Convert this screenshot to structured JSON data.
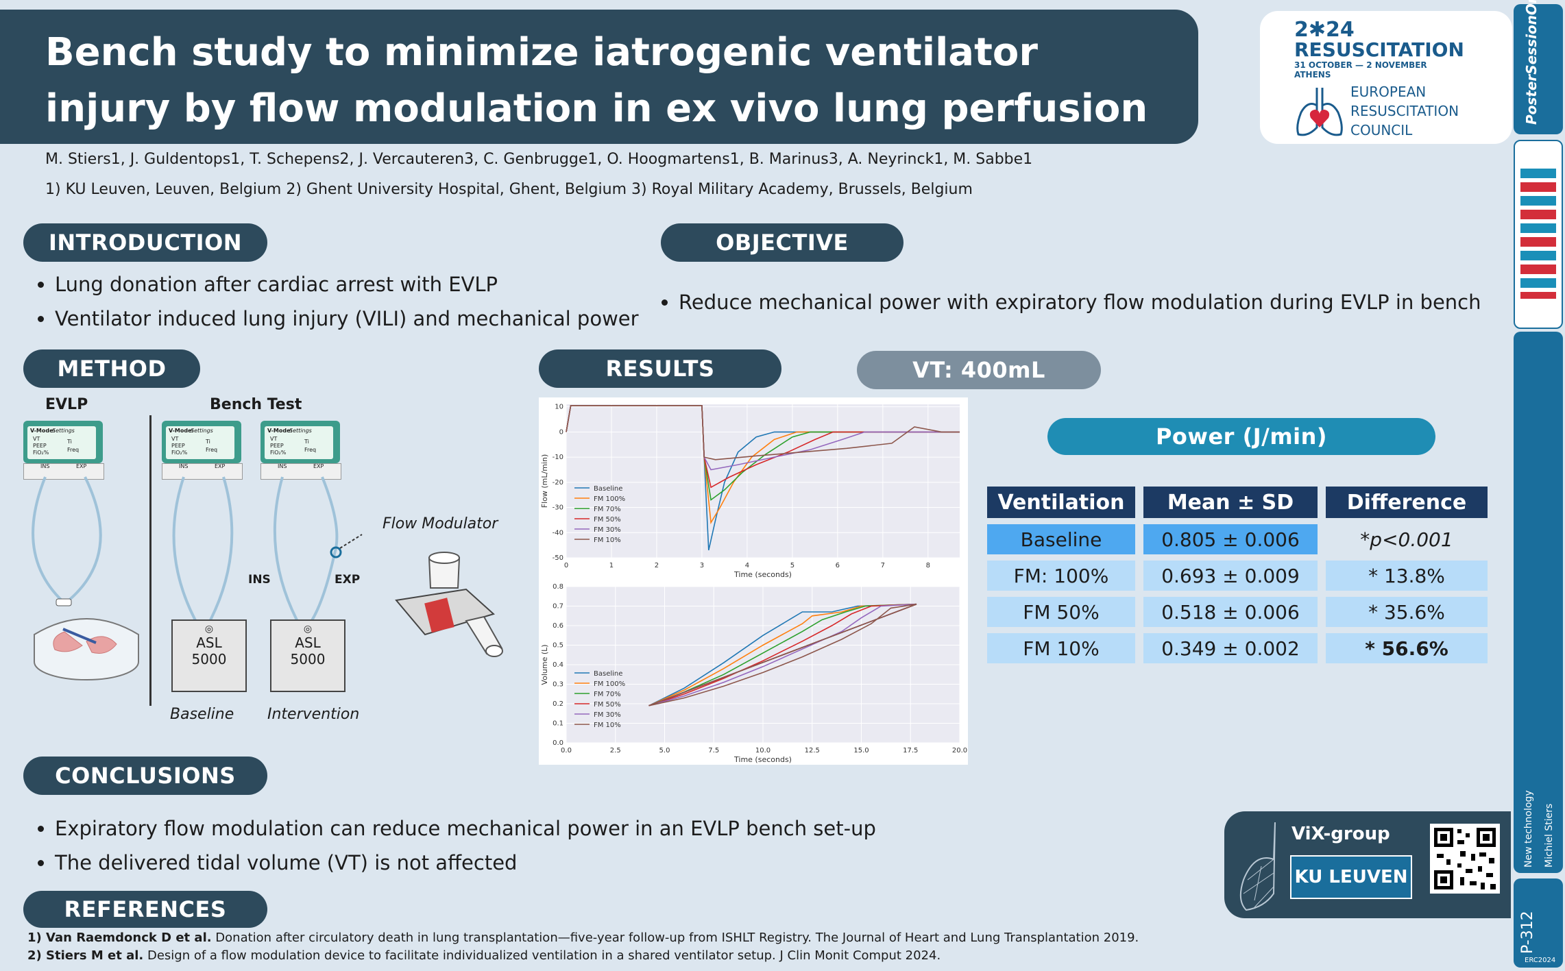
{
  "title": "Bench study to minimize iatrogenic ventilator injury by flow modulation in ex vivo lung perfusion",
  "authors": "M. Stiers1, J. Guldentops1, T. Schepens2, J. Vercauteren3, C. Genbrugge1, O. Hoogmartens1, B. Marinus3, A. Neyrinck1, M. Sabbe1",
  "affiliations": "1) KU Leuven, Leuven, Belgium  2) Ghent University Hospital, Ghent, Belgium  3) Royal Military Academy, Brussels, Belgium",
  "logo": {
    "year": "2✱24",
    "event": "RESUSCITATION",
    "dates": "31 OCTOBER — 2 NOVEMBER",
    "city": "ATHENS",
    "org1": "EUROPEAN",
    "org2": "RESUSCITATION",
    "org3": "COUNCIL"
  },
  "sections": {
    "introduction": "INTRODUCTION",
    "objective": "OBJECTIVE",
    "method": "METHOD",
    "results": "RESULTS",
    "vt": "VT: 400mL",
    "power": "Power (J/min)",
    "conclusions": "CONCLUSIONS",
    "references": "REFERENCES"
  },
  "introduction_items": [
    "Lung donation after cardiac arrest with EVLP",
    "Ventilator induced lung injury (VILI) and mechanical power"
  ],
  "objective_items": [
    "Reduce mechanical power with expiratory flow modulation during EVLP in bench"
  ],
  "method": {
    "evlp_label": "EVLP",
    "bench_label": "Bench Test",
    "baseline_label": "Baseline",
    "intervention_label": "Intervention",
    "flow_modulator_label": "Flow Modulator",
    "ins": "INS",
    "exp": "EXP",
    "asl": "ASL",
    "asl_num": "5000",
    "device": {
      "mode": "V-Mode:",
      "settings": "Settings",
      "vt": "VT",
      "peep": "PEEP",
      "fio2": "FiO₂%",
      "ti": "Ti",
      "freq": "Freq",
      "ins": "INS",
      "exp": "EXP"
    }
  },
  "table": {
    "headers": [
      "Ventilation",
      "Mean ± SD",
      "Difference"
    ],
    "rows": [
      [
        "Baseline",
        "0.805 ± 0.006",
        "*p<0.001"
      ],
      [
        "FM: 100%",
        "0.693 ± 0.009",
        "* 13.8%"
      ],
      [
        "FM 50%",
        "0.518 ± 0.006",
        "* 35.6%"
      ],
      [
        "FM 10%",
        "0.349 ± 0.002",
        "* 56.6%"
      ]
    ]
  },
  "conclusions_items": [
    "Expiratory flow modulation can reduce mechanical power in an EVLP bench set-up",
    "The delivered tidal volume (VT) is not affected"
  ],
  "references_items": [
    {
      "bold": "1) Van Raemdonck D et al.",
      "text": " Donation after circulatory death in lung transplantation—five-year follow-up from ISHLT Registry. The Journal of Heart and Lung Transplantation 2019."
    },
    {
      "bold": "2) Stiers M et al.",
      "text": " Design of a flow modulation device to facilitate individualized ventilation in a shared ventilator setup. J Clin Monit Comput 2024."
    }
  ],
  "vix": {
    "group": "ViX-group",
    "university": "KU LEUVEN"
  },
  "sidebar": {
    "brand": "PosterSessionOnline",
    "topic": "New technology",
    "author": "Michiel Stiers",
    "poster_id": "P-312",
    "conf": "ERC2024"
  },
  "colors": {
    "series": [
      "#1f77b4",
      "#ff7f0e",
      "#2ca02c",
      "#d62728",
      "#9467bd",
      "#8c564b"
    ]
  },
  "chart_data": [
    {
      "type": "line",
      "xlabel": "Time (seconds)",
      "ylabel": "Flow (mL/min)",
      "xlim": [
        0,
        8.7
      ],
      "ylim": [
        -50,
        11
      ],
      "xticks": [
        0,
        1,
        2,
        3,
        4,
        5,
        6,
        7,
        8
      ],
      "yticks": [
        10,
        0,
        -10,
        -20,
        -30,
        -40,
        -50
      ],
      "legend": "lower-left",
      "series": [
        {
          "name": "Baseline",
          "x": [
            0,
            0.1,
            3.0,
            3.05,
            3.15,
            3.3,
            3.5,
            3.8,
            4.2,
            4.6,
            5.0,
            8.7
          ],
          "y": [
            0,
            10.5,
            10.5,
            -10,
            -47,
            -35,
            -20,
            -8,
            -2,
            0,
            0,
            0
          ]
        },
        {
          "name": "FM 100%",
          "x": [
            0,
            0.1,
            3.0,
            3.05,
            3.2,
            3.4,
            3.7,
            4.1,
            4.6,
            5.1,
            5.4,
            8.7
          ],
          "y": [
            0,
            10.5,
            10.5,
            -10,
            -36,
            -30,
            -20,
            -10,
            -3,
            0,
            0,
            0
          ]
        },
        {
          "name": "FM 70%",
          "x": [
            0,
            0.1,
            3.0,
            3.05,
            3.2,
            3.5,
            3.9,
            4.4,
            5.0,
            5.4,
            8.7
          ],
          "y": [
            0,
            10.5,
            10.5,
            -10,
            -27,
            -23,
            -16,
            -9,
            -2,
            0,
            0
          ]
        },
        {
          "name": "FM 50%",
          "x": [
            0,
            0.1,
            3.0,
            3.05,
            3.2,
            3.6,
            4.2,
            4.9,
            5.5,
            5.9,
            8.7
          ],
          "y": [
            0,
            10.5,
            10.5,
            -10,
            -22,
            -18,
            -13,
            -8,
            -3,
            0,
            0
          ]
        },
        {
          "name": "FM 30%",
          "x": [
            0,
            0.1,
            3.0,
            3.05,
            3.2,
            3.8,
            4.6,
            5.4,
            6.1,
            6.6,
            8.7
          ],
          "y": [
            0,
            10.5,
            10.5,
            -10,
            -15,
            -13,
            -10,
            -7,
            -3,
            0,
            0
          ]
        },
        {
          "name": "FM 10%",
          "x": [
            0,
            0.1,
            3.0,
            3.05,
            3.3,
            4.2,
            5.2,
            6.2,
            7.2,
            7.7,
            8.3,
            8.7
          ],
          "y": [
            0,
            10.5,
            10.5,
            -10,
            -11,
            -9.5,
            -8,
            -6.5,
            -4.5,
            2,
            0,
            0
          ]
        }
      ]
    },
    {
      "type": "line",
      "xlabel": "Time (seconds)",
      "ylabel": "Volume (L)",
      "xlim": [
        0,
        20
      ],
      "ylim": [
        0,
        0.8
      ],
      "xticks": [
        0.0,
        2.5,
        5.0,
        7.5,
        10.0,
        12.5,
        15.0,
        17.5,
        20.0
      ],
      "yticks": [
        0.0,
        0.1,
        0.2,
        0.3,
        0.4,
        0.5,
        0.6,
        0.7,
        0.8
      ],
      "legend": "lower-left",
      "series": [
        {
          "name": "Baseline",
          "x": [
            4.2,
            6,
            8,
            10,
            11.5,
            12,
            13.5,
            14.8,
            17.8,
            4.2
          ],
          "y": [
            0.19,
            0.28,
            0.41,
            0.55,
            0.64,
            0.67,
            0.67,
            0.7,
            0.71,
            0.19
          ]
        },
        {
          "name": "FM 100%",
          "x": [
            4.2,
            6,
            8,
            10,
            12,
            12.5,
            14,
            15,
            17.8,
            4.2
          ],
          "y": [
            0.19,
            0.27,
            0.38,
            0.5,
            0.61,
            0.65,
            0.67,
            0.7,
            0.71,
            0.19
          ]
        },
        {
          "name": "FM 70%",
          "x": [
            4.2,
            6,
            8,
            10,
            12,
            13,
            14.2,
            15.2,
            17.8,
            4.2
          ],
          "y": [
            0.19,
            0.26,
            0.35,
            0.46,
            0.57,
            0.63,
            0.67,
            0.7,
            0.71,
            0.19
          ]
        },
        {
          "name": "FM 50%",
          "x": [
            4.2,
            6,
            8,
            10,
            12,
            13.5,
            14.5,
            15.5,
            17.8,
            4.2
          ],
          "y": [
            0.19,
            0.25,
            0.33,
            0.42,
            0.52,
            0.6,
            0.66,
            0.7,
            0.71,
            0.19
          ]
        },
        {
          "name": "FM 30%",
          "x": [
            4.2,
            6,
            8,
            10,
            12,
            14,
            15,
            16,
            17.8,
            4.2
          ],
          "y": [
            0.19,
            0.24,
            0.31,
            0.39,
            0.48,
            0.57,
            0.64,
            0.7,
            0.71,
            0.19
          ]
        },
        {
          "name": "FM 10%",
          "x": [
            4.2,
            6,
            8,
            10,
            12,
            14,
            15.5,
            16.5,
            17.8,
            4.2
          ],
          "y": [
            0.19,
            0.23,
            0.29,
            0.36,
            0.44,
            0.53,
            0.61,
            0.69,
            0.71,
            0.19
          ]
        }
      ]
    }
  ]
}
